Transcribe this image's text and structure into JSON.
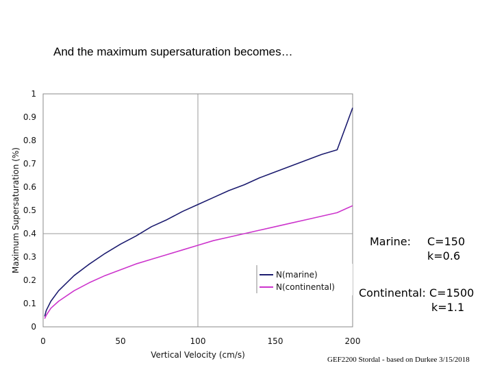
{
  "slide": {
    "title": "And the maximum supersaturation becomes…",
    "footer": "GEF2200 Stordal - based on Durkee 3/15/2018"
  },
  "annotations": {
    "marine_label": "Marine:",
    "marine_c": "C=150",
    "marine_k": "k=0.6",
    "continental_label": "Continental:",
    "continental_c": "C=1500",
    "continental_k": "k=1.1"
  },
  "chart_data": {
    "type": "line",
    "title": "",
    "xlabel": "Vertical Velocity (cm/s)",
    "ylabel": "Maximum Supersaturation (%)",
    "xlim": [
      0,
      200
    ],
    "ylim": [
      0,
      1
    ],
    "x_ticks": [
      "0",
      "50",
      "100",
      "150",
      "200"
    ],
    "y_ticks": [
      "0",
      "0.1",
      "0.2",
      "0.3",
      "0.4",
      "0.5",
      "0.6",
      "0.7",
      "0.8",
      "0.9",
      "1"
    ],
    "grid": "major lines at x=100 and y=0.4",
    "legend_position": "lower-right inside plot",
    "series": [
      {
        "name": "N(marine)",
        "color": "#1a1a6e",
        "x": [
          1,
          2,
          5,
          10,
          20,
          30,
          40,
          50,
          60,
          70,
          80,
          90,
          100,
          110,
          120,
          130,
          140,
          150,
          160,
          170,
          180,
          190,
          200
        ],
        "y": [
          0.045,
          0.07,
          0.11,
          0.155,
          0.22,
          0.27,
          0.315,
          0.355,
          0.39,
          0.43,
          0.46,
          0.495,
          0.525,
          0.555,
          0.585,
          0.61,
          0.64,
          0.665,
          0.69,
          0.715,
          0.74,
          0.76,
          0.94
        ]
      },
      {
        "name": "N(continental)",
        "color": "#cc33cc",
        "x": [
          1,
          2,
          5,
          10,
          20,
          30,
          40,
          50,
          60,
          70,
          80,
          90,
          100,
          110,
          120,
          130,
          140,
          150,
          160,
          170,
          180,
          190,
          200
        ],
        "y": [
          0.035,
          0.05,
          0.08,
          0.11,
          0.155,
          0.19,
          0.22,
          0.245,
          0.27,
          0.29,
          0.31,
          0.33,
          0.35,
          0.37,
          0.385,
          0.4,
          0.415,
          0.43,
          0.445,
          0.46,
          0.475,
          0.49,
          0.52
        ]
      }
    ]
  }
}
